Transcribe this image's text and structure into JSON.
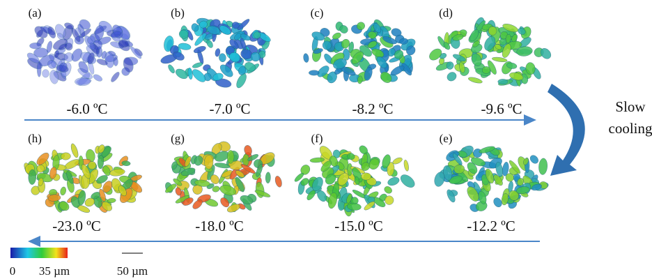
{
  "panels": [
    {
      "label": "(a)",
      "temperature": "-6.0 ºC"
    },
    {
      "label": "(b)",
      "temperature": "-7.0 ºC"
    },
    {
      "label": "(c)",
      "temperature": "-8.2 ºC"
    },
    {
      "label": "(d)",
      "temperature": "-9.6 ºC"
    },
    {
      "label": "(e)",
      "temperature": "-12.2 ºC"
    },
    {
      "label": "(f)",
      "temperature": "-15.0 ºC"
    },
    {
      "label": "(g)",
      "temperature": "-18.0 ºC"
    },
    {
      "label": "(h)",
      "temperature": "-23.0 ºC"
    }
  ],
  "cooling_label": [
    "Slow",
    "cooling"
  ],
  "colorbar": {
    "min_label": "0",
    "max_label": "35 µm"
  },
  "scale_bar": {
    "label": "50 µm"
  }
}
